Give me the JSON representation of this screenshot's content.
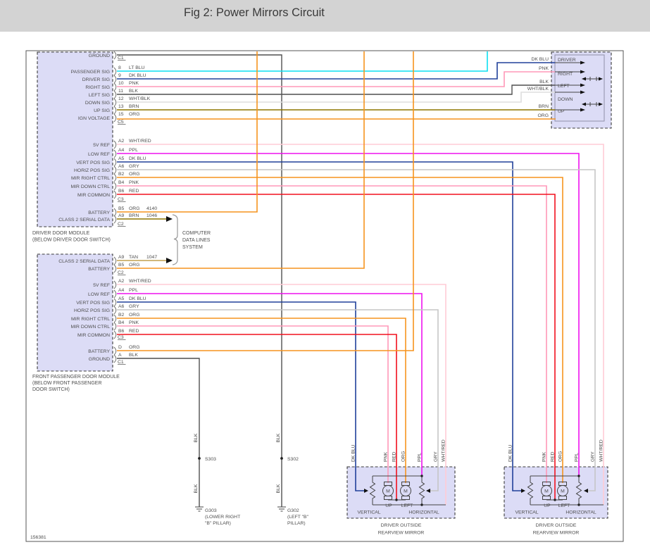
{
  "title": "Fig 2: Power Mirrors Circuit",
  "drawing_number": "156381",
  "colors": {
    "ltblu": "#0cdff2",
    "dkblu": "#20409a",
    "pnk": "#ff98b8",
    "blk": "#4f4f4f",
    "whtblk": "#dedede",
    "brn": "#8e7600",
    "org": "#f6941e",
    "whtred": "#ffccd6",
    "ppl": "#ee12ee",
    "gry": "#c6c6c6",
    "red": "#f2111e",
    "tan": "#c2a14e",
    "module_fill": "#dcdcf6",
    "titlebar": "#d3d3d3",
    "line": "#444444",
    "text": "#4d4d4d"
  },
  "driver_door_module": {
    "caption": [
      "DRIVER DOOR MODULE",
      "(BELOW DRIVER DOOR SWITCH)"
    ],
    "connector_labels": [
      "C1",
      "C5",
      "C3",
      "C2"
    ],
    "pins": [
      {
        "signal": "GROUND",
        "id": "",
        "color": ""
      },
      {
        "signal": "PASSENGER SIG",
        "id": "8",
        "color": "LT BLU"
      },
      {
        "signal": "DRIVER SIG",
        "id": "9",
        "color": "DK BLU"
      },
      {
        "signal": "RIGHT SIG",
        "id": "10",
        "color": "PNK"
      },
      {
        "signal": "LEFT SIG",
        "id": "11",
        "color": "BLK"
      },
      {
        "signal": "DOWN SIG",
        "id": "12",
        "color": "WHT/BLK"
      },
      {
        "signal": "UP SIG",
        "id": "13",
        "color": "BRN"
      },
      {
        "signal": "IGN VOLTAGE",
        "id": "15",
        "color": "ORG"
      },
      {
        "signal": "5V REF",
        "id": "A2",
        "color": "WHT/RED"
      },
      {
        "signal": "LOW REF",
        "id": "A4",
        "color": "PPL"
      },
      {
        "signal": "VERT POS SIG",
        "id": "A5",
        "color": "DK BLU"
      },
      {
        "signal": "HORIZ POS SIG",
        "id": "A6",
        "color": "GRY"
      },
      {
        "signal": "MIR RIGHT CTRL",
        "id": "B2",
        "color": "ORG"
      },
      {
        "signal": "MIR DOWN CTRL",
        "id": "B4",
        "color": "PNK"
      },
      {
        "signal": "MIR COMMON",
        "id": "B6",
        "color": "RED"
      },
      {
        "signal": "BATTERY",
        "id": "B5",
        "color": "ORG",
        "circuit": "4140"
      },
      {
        "signal": "CLASS 2 SERIAL DATA",
        "id": "A9",
        "color": "BRN",
        "circuit": "1046"
      }
    ]
  },
  "front_passenger_door_module": {
    "caption": [
      "FRONT PASSENGER DOOR MODULE",
      "(BELOW FRONT PASSENGER",
      "DOOR SWITCH)"
    ],
    "connector_labels": [
      "C2",
      "C3",
      "C1"
    ],
    "pins": [
      {
        "signal": "CLASS 2 SERIAL DATA",
        "id": "A9",
        "color": "TAN",
        "circuit": "1047"
      },
      {
        "signal": "BATTERY",
        "id": "B5",
        "color": "ORG"
      },
      {
        "signal": "5V REF",
        "id": "A2",
        "color": "WHT/RED"
      },
      {
        "signal": "LOW REF",
        "id": "A4",
        "color": "PPL"
      },
      {
        "signal": "VERT POS SIG",
        "id": "A5",
        "color": "DK BLU"
      },
      {
        "signal": "HORIZ POS SIG",
        "id": "A6",
        "color": "GRY"
      },
      {
        "signal": "MIR RIGHT CTRL",
        "id": "B2",
        "color": "ORG"
      },
      {
        "signal": "MIR DOWN CTRL",
        "id": "B4",
        "color": "PNK"
      },
      {
        "signal": "MIR COMMON",
        "id": "B6",
        "color": "RED"
      },
      {
        "signal": "BATTERY",
        "id": "D",
        "color": "ORG"
      },
      {
        "signal": "GROUND",
        "id": "A",
        "color": "BLK"
      }
    ]
  },
  "computer_data_lines": [
    "COMPUTER",
    "DATA LINES",
    "SYSTEM"
  ],
  "mirror_switch": {
    "wire_labels": [
      "DK BLU",
      "PNK",
      "BLK",
      "WHT/BLK",
      "BRN",
      "ORG"
    ],
    "positions": [
      "DRIVER",
      "RIGHT",
      "LEFT",
      "DOWN",
      "UP"
    ]
  },
  "left_mirror": {
    "wire_labels": [
      "DK BLU",
      "PNK",
      "RED",
      "ORG",
      "PPL",
      "GRY",
      "WHT/RED"
    ],
    "motor_letter": "M",
    "motor_labels": [
      "UP",
      "LEFT"
    ],
    "axis_labels": [
      "VERTICAL",
      "HORIZONTAL"
    ],
    "caption": [
      "DRIVER OUTSIDE",
      "REARVIEW MIRROR"
    ]
  },
  "right_mirror": {
    "wire_labels": [
      "DK BLU",
      "PNK",
      "RED",
      "ORG",
      "PPL",
      "GRY",
      "WHT/RED"
    ],
    "motor_letter": "M",
    "motor_labels": [
      "UP",
      "LEFT"
    ],
    "axis_labels": [
      "VERTICAL",
      "HORIZONTAL"
    ],
    "caption": [
      "DRIVER OUTSIDE",
      "REARVIEW MIRROR"
    ]
  },
  "grounds": {
    "wire_label": "BLK",
    "s303": "S303",
    "g303": [
      "G303",
      "(LOWER RIGHT",
      "\"B\" PILLAR)"
    ],
    "s302": "S302",
    "g302": [
      "G302",
      "(LEFT \"B\"",
      "PILLAR)"
    ]
  }
}
